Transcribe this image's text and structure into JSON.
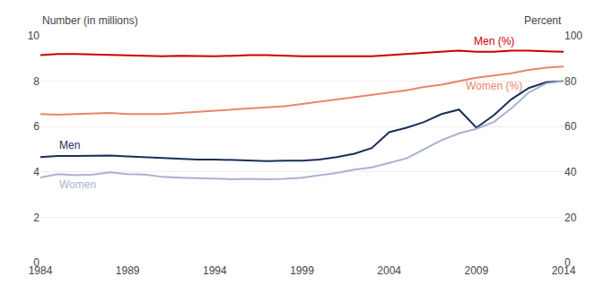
{
  "chart_data": {
    "type": "line",
    "ylabel": "Number (in millions)",
    "y2label": "Percent",
    "x": [
      1984,
      1985,
      1986,
      1987,
      1988,
      1989,
      1990,
      1991,
      1992,
      1993,
      1994,
      1995,
      1996,
      1997,
      1998,
      1999,
      2000,
      2001,
      2002,
      2003,
      2004,
      2005,
      2006,
      2007,
      2008,
      2009,
      2010,
      2011,
      2012,
      2013,
      2014
    ],
    "series": [
      {
        "name": "Men",
        "color": "#1a2e5a",
        "values": [
          4.65,
          4.7,
          4.7,
          4.7,
          4.72,
          4.68,
          4.65,
          4.6,
          4.6,
          4.55,
          4.55,
          4.52,
          4.5,
          4.48,
          4.5,
          4.5,
          4.55,
          4.65,
          4.8,
          5.05,
          5.75,
          5.95,
          6.2,
          6.55,
          6.75,
          5.95,
          6.5,
          7.2,
          7.7,
          7.95,
          8.0
        ]
      },
      {
        "name": "Women",
        "color": "#a8b4cc",
        "values": [
          3.75,
          3.9,
          3.85,
          3.88,
          3.98,
          3.9,
          3.88,
          3.78,
          3.75,
          3.72,
          3.7,
          3.68,
          3.7,
          3.68,
          3.7,
          3.75,
          3.85,
          3.95,
          4.1,
          4.2,
          4.4,
          4.6,
          5.0,
          5.4,
          5.7,
          5.9,
          6.2,
          6.8,
          7.5,
          7.9,
          8.0
        ]
      },
      {
        "name": "Men (%)",
        "color": "#cc0000",
        "axis": "y2",
        "values": [
          91.5,
          92.0,
          92.0,
          91.8,
          91.5,
          91.2,
          91.0,
          91.0,
          91.2,
          91.0,
          91.0,
          91.2,
          91.5,
          91.5,
          91.2,
          91.0,
          91.0,
          91.0,
          91.2,
          91.0,
          91.5,
          92.0,
          92.5,
          93.0,
          93.5,
          93.0,
          93.0,
          93.5,
          93.5,
          93.2,
          93.0
        ]
      },
      {
        "name": "Women (%)",
        "color": "#e8856a",
        "axis": "y2",
        "values": [
          65.5,
          65.2,
          65.5,
          65.8,
          66.0,
          65.5,
          65.5,
          65.5,
          66.0,
          66.5,
          67.0,
          67.5,
          68.0,
          68.5,
          69.0,
          70.0,
          71.0,
          72.0,
          73.0,
          74.0,
          75.0,
          76.0,
          77.5,
          78.5,
          80.0,
          81.5,
          82.5,
          83.5,
          85.0,
          86.0,
          86.5
        ]
      }
    ],
    "xlim": [
      1984,
      2014
    ],
    "xticks": [
      1984,
      1989,
      1994,
      1999,
      2004,
      2009,
      2014
    ],
    "ylim": [
      0,
      10
    ],
    "yticks": [
      0,
      2,
      4,
      6,
      8,
      10
    ],
    "y2lim": [
      0,
      100
    ],
    "y2ticks": [
      0,
      20,
      40,
      60,
      80,
      100
    ],
    "grid": true
  }
}
